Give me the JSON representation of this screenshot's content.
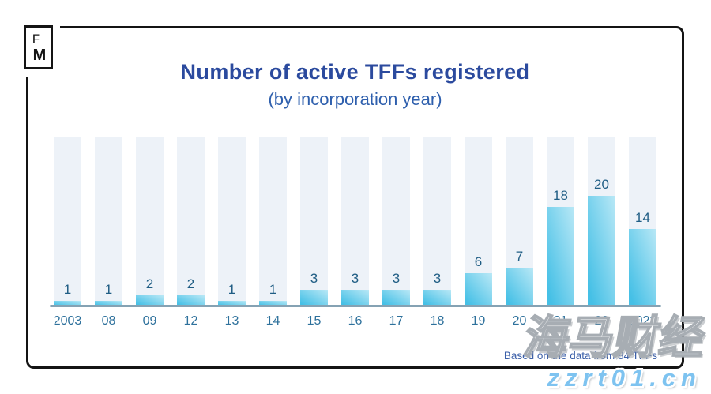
{
  "logo": {
    "letter_top": "F",
    "letter_bottom": "M"
  },
  "header": {
    "title": "Number of active TFFs registered",
    "subtitle": "(by incorporation year)"
  },
  "footnote": "Based on the data from 84 TFFs",
  "watermark": {
    "brand_text": "海马财经",
    "site_text": "zzrt01.cn"
  },
  "colors": {
    "title": "#2b4a9e",
    "subtitle": "#2e5fad",
    "bar_gradient_from": "#45c0e6",
    "bar_gradient_to": "#b9e8f6",
    "column_background": "#edf2f8",
    "axis_line": "#85a2b3",
    "x_label": "#2e719c",
    "value_label": "#1f5d84",
    "footnote": "#3b5fa8",
    "watermark_site": "#7ec3f0"
  },
  "chart_data": {
    "type": "bar",
    "title": "Number of active TFFs registered",
    "subtitle": "(by incorporation year)",
    "categories": [
      "2003",
      "08",
      "09",
      "12",
      "13",
      "14",
      "15",
      "16",
      "17",
      "18",
      "19",
      "20",
      "21",
      "22",
      "2023"
    ],
    "values": [
      1,
      1,
      2,
      2,
      1,
      1,
      3,
      3,
      3,
      3,
      6,
      7,
      18,
      20,
      14
    ],
    "xlabel": "incorporation year",
    "ylabel": "number of active TFFs registered",
    "ylim": [
      0,
      30.7
    ],
    "grid": false,
    "legend": false,
    "data_labels": true,
    "annotations": [
      "Based on the data from 84 TFFs"
    ]
  }
}
